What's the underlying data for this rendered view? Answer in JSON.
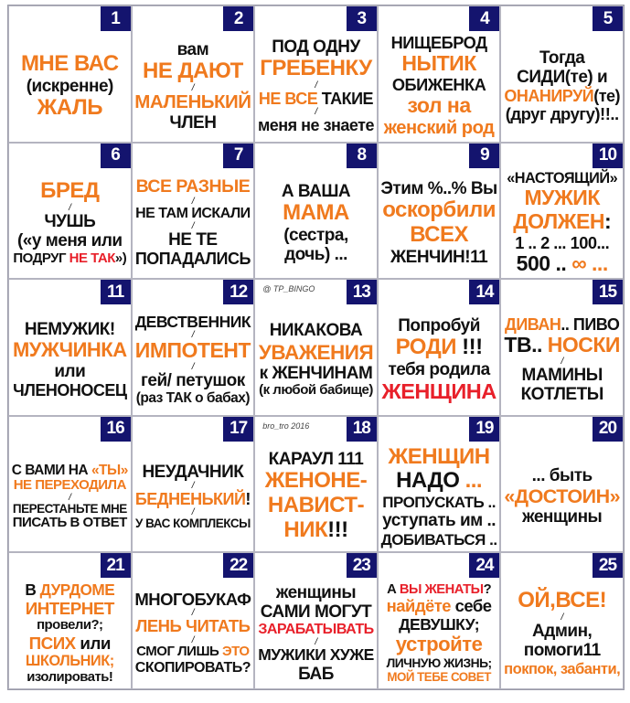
{
  "colors": {
    "orange": "#f07a1e",
    "red": "#e8202a",
    "number_bg": "#14146e",
    "text": "#111111"
  },
  "cells": [
    {
      "num": "1",
      "lines": [
        [
          [
            "o",
            "МНЕ ВАС"
          ]
        ],
        [
          [
            "b",
            "(искренне)"
          ]
        ],
        [
          [
            "o",
            "ЖАЛЬ"
          ]
        ]
      ]
    },
    {
      "num": "2",
      "lines": [
        [
          [
            "b",
            "вам"
          ]
        ],
        [
          [
            "o",
            "НЕ ДАЮТ"
          ]
        ],
        [
          [
            "b",
            "/"
          ]
        ],
        [
          [
            "o",
            "МАЛЕНЬКИЙ"
          ]
        ],
        [
          [
            "b",
            "ЧЛЕН"
          ]
        ]
      ]
    },
    {
      "num": "3",
      "lines": [
        [
          [
            "b",
            "ПОД ОДНУ"
          ]
        ],
        [
          [
            "o",
            "ГРЕБЕНКУ"
          ]
        ],
        [
          [
            "b",
            "/"
          ]
        ],
        [
          [
            "o",
            "НЕ ВСЕ "
          ],
          [
            "b",
            "ТАКИЕ"
          ]
        ],
        [
          [
            "b",
            "/"
          ]
        ],
        [
          [
            "b",
            "меня не знаете"
          ]
        ]
      ]
    },
    {
      "num": "4",
      "lines": [
        [
          [
            "b",
            "НИЩЕБРОД"
          ]
        ],
        [
          [
            "o",
            "НЫТИК"
          ]
        ],
        [
          [
            "b",
            "ОБИЖЕНКА"
          ]
        ],
        [
          [
            "o",
            "зол на"
          ]
        ],
        [
          [
            "o",
            "женский род"
          ]
        ]
      ]
    },
    {
      "num": "5",
      "lines": [
        [
          [
            "b",
            "Тогда"
          ]
        ],
        [
          [
            "b",
            "СИДИ(те) и"
          ]
        ],
        [
          [
            "o",
            "ОНАНИРУЙ"
          ],
          [
            "b",
            "(те)"
          ]
        ],
        [
          [
            "b",
            "(друг другу)!!.."
          ]
        ]
      ]
    },
    {
      "num": "6",
      "lines": [
        [
          [
            "o",
            "БРЕД"
          ]
        ],
        [
          [
            "b",
            "/"
          ]
        ],
        [
          [
            "b",
            "ЧУШЬ"
          ]
        ],
        [
          [
            "b",
            "(«у меня или"
          ]
        ],
        [
          [
            "b",
            "ПОДРУГ "
          ],
          [
            "r",
            "НЕ ТАК"
          ],
          [
            "b",
            "»)"
          ]
        ]
      ]
    },
    {
      "num": "7",
      "lines": [
        [
          [
            "o",
            "ВСЕ РАЗНЫЕ"
          ]
        ],
        [
          [
            "b",
            "/"
          ]
        ],
        [
          [
            "b",
            "НЕ ТАМ ИСКАЛИ"
          ]
        ],
        [
          [
            "b",
            "/"
          ]
        ],
        [
          [
            "b",
            "НЕ ТЕ"
          ]
        ],
        [
          [
            "b",
            "ПОПАДАЛИСЬ"
          ]
        ]
      ]
    },
    {
      "num": "8",
      "lines": [
        [
          [
            "b",
            "А ВАША"
          ]
        ],
        [
          [
            "o",
            "МАМА"
          ]
        ],
        [
          [
            "b",
            "(сестра,"
          ]
        ],
        [
          [
            "b",
            "дочь) ..."
          ]
        ]
      ]
    },
    {
      "num": "9",
      "lines": [
        [
          [
            "b",
            "Этим %..% Вы"
          ]
        ],
        [
          [
            "o",
            "оскорбили"
          ]
        ],
        [
          [
            "o",
            "ВСЕХ"
          ]
        ],
        [
          [
            "b",
            "ЖЕНЧИН!11"
          ]
        ]
      ]
    },
    {
      "num": "10",
      "lines": [
        [
          [
            "b",
            "«НАСТОЯЩИЙ»"
          ]
        ],
        [
          [
            "o",
            "МУЖИК"
          ]
        ],
        [
          [
            "o",
            "ДОЛЖЕН"
          ],
          [
            "b",
            ":"
          ]
        ],
        [
          [
            "b",
            "1 .. 2 ... 100..."
          ]
        ],
        [
          [
            "b",
            "500 .. "
          ],
          [
            "o",
            "∞ ..."
          ]
        ]
      ]
    },
    {
      "num": "11",
      "lines": [
        [
          [
            "b",
            "НЕМУЖИК!"
          ]
        ],
        [
          [
            "o",
            "МУЖЧИНКА"
          ]
        ],
        [
          [
            "b",
            "или"
          ]
        ],
        [
          [
            "b",
            "ЧЛЕНОНОСЕЦ"
          ]
        ]
      ]
    },
    {
      "num": "12",
      "lines": [
        [
          [
            "b",
            "ДЕВСТВЕННИК"
          ]
        ],
        [
          [
            "b",
            "/"
          ]
        ],
        [
          [
            "o",
            "ИМПОТЕНТ"
          ]
        ],
        [
          [
            "b",
            "/"
          ]
        ],
        [
          [
            "b",
            "гей/ петушок"
          ]
        ],
        [
          [
            "b",
            "(раз ТАК о бабах)"
          ]
        ]
      ]
    },
    {
      "num": "13",
      "watermark": "@ TP_BINGO",
      "lines": [
        [
          [
            "b",
            "НИКАКОВА"
          ]
        ],
        [
          [
            "o",
            "УВАЖЕНИЯ"
          ]
        ],
        [
          [
            "b",
            "к ЖЕНЧИНАМ"
          ]
        ],
        [
          [
            "b",
            "(к любой бабище)"
          ]
        ]
      ]
    },
    {
      "num": "14",
      "lines": [
        [
          [
            "b",
            "Попробуй"
          ]
        ],
        [
          [
            "o",
            "РОДИ"
          ],
          [
            "b",
            " !!!"
          ]
        ],
        [
          [
            "b",
            "тебя родила"
          ]
        ],
        [
          [
            "r",
            "ЖЕНЩИНА"
          ]
        ]
      ]
    },
    {
      "num": "15",
      "lines": [
        [
          [
            "o",
            "ДИВАН"
          ],
          [
            "b",
            ".. ПИВО"
          ]
        ],
        [
          [
            "b",
            "ТВ.. "
          ],
          [
            "o",
            "НОСКИ"
          ]
        ],
        [
          [
            "b",
            "/"
          ]
        ],
        [
          [
            "b",
            "МАМИНЫ"
          ]
        ],
        [
          [
            "b",
            "КОТЛЕТЫ"
          ]
        ]
      ]
    },
    {
      "num": "16",
      "lines": [
        [
          [
            "b",
            "С ВАМИ НА "
          ],
          [
            "o",
            "«ТЫ»"
          ]
        ],
        [
          [
            "o",
            "НЕ ПЕРЕХОДИЛА"
          ]
        ],
        [
          [
            "b",
            "/"
          ]
        ],
        [
          [
            "b",
            "ПЕРЕСТАНЬТЕ МНЕ"
          ]
        ],
        [
          [
            "b",
            "ПИСАТЬ В ОТВЕТ"
          ]
        ]
      ]
    },
    {
      "num": "17",
      "lines": [
        [
          [
            "b",
            "НЕУДАЧНИК"
          ]
        ],
        [
          [
            "b",
            "/"
          ]
        ],
        [
          [
            "o",
            "БЕДНЕНЬКИЙ"
          ],
          [
            "b",
            "!"
          ]
        ],
        [
          [
            "b",
            "/"
          ]
        ],
        [
          [
            "b",
            "У ВАС КОМПЛЕКСЫ"
          ]
        ]
      ]
    },
    {
      "num": "18",
      "watermark": "bro_tro 2016",
      "lines": [
        [
          [
            "b",
            "КАРАУЛ 111"
          ]
        ],
        [
          [
            "o",
            "ЖЕНОНЕ-"
          ]
        ],
        [
          [
            "o",
            "НАВИСТ-"
          ]
        ],
        [
          [
            "o",
            "НИК"
          ],
          [
            "b",
            "!!!"
          ]
        ]
      ]
    },
    {
      "num": "19",
      "lines": [
        [
          [
            "o",
            "ЖЕНЩИН"
          ]
        ],
        [
          [
            "b",
            "НАДО"
          ],
          [
            "o",
            " ..."
          ]
        ],
        [
          [
            "b",
            "ПРОПУСКАТЬ .."
          ]
        ],
        [
          [
            "b",
            "уступать им .."
          ]
        ],
        [
          [
            "b",
            "ДОБИВАТЬСЯ .."
          ]
        ]
      ]
    },
    {
      "num": "20",
      "lines": [
        [
          [
            "b",
            "... быть"
          ]
        ],
        [
          [
            "o",
            "«ДОСТОИН»"
          ]
        ],
        [
          [
            "b",
            "женщины"
          ]
        ]
      ]
    },
    {
      "num": "21",
      "lines": [
        [
          [
            "b",
            "В "
          ],
          [
            "o",
            "ДУРДОМЕ"
          ]
        ],
        [
          [
            "o",
            "ИНТЕРНЕТ"
          ]
        ],
        [
          [
            "b",
            "провели?;"
          ]
        ],
        [
          [
            "o",
            "ПСИХ"
          ],
          [
            "b",
            " или"
          ]
        ],
        [
          [
            "o",
            "ШКОЛЬНИК;"
          ]
        ],
        [
          [
            "b",
            "изолировать!"
          ]
        ]
      ]
    },
    {
      "num": "22",
      "lines": [
        [
          [
            "b",
            "МНОГОБУКАФ"
          ]
        ],
        [
          [
            "b",
            "/"
          ]
        ],
        [
          [
            "o",
            "ЛЕНЬ ЧИТАТЬ"
          ]
        ],
        [
          [
            "b",
            "/"
          ]
        ],
        [
          [
            "b",
            "СМОГ ЛИШЬ "
          ],
          [
            "o",
            "ЭТО"
          ]
        ],
        [
          [
            "b",
            "СКОПИРОВАТЬ?"
          ]
        ]
      ]
    },
    {
      "num": "23",
      "lines": [
        [
          [
            "b",
            "женщины"
          ]
        ],
        [
          [
            "b",
            "САМИ МОГУТ"
          ]
        ],
        [
          [
            "r",
            "ЗАРАБАТЫВАТЬ"
          ]
        ],
        [
          [
            "b",
            "/"
          ]
        ],
        [
          [
            "b",
            "МУЖИКИ ХУЖЕ"
          ]
        ],
        [
          [
            "b",
            "БАБ"
          ]
        ]
      ]
    },
    {
      "num": "24",
      "lines": [
        [
          [
            "b",
            "А "
          ],
          [
            "r",
            "ВЫ ЖЕНАТЫ"
          ],
          [
            "b",
            "?"
          ]
        ],
        [
          [
            "o",
            "найдёте"
          ],
          [
            "b",
            " себе"
          ]
        ],
        [
          [
            "b",
            "ДЕВУШКУ;"
          ]
        ],
        [
          [
            "o",
            "устройте"
          ]
        ],
        [
          [
            "b",
            "ЛИЧНУЮ ЖИЗНЬ;"
          ]
        ],
        [
          [
            "o",
            "МОЙ ТЕБЕ СОВЕТ"
          ]
        ]
      ]
    },
    {
      "num": "25",
      "lines": [
        [
          [
            "o",
            "ОЙ,ВСЕ!"
          ]
        ],
        [
          [
            "b",
            "/"
          ]
        ],
        [
          [
            "b",
            "Админ,"
          ]
        ],
        [
          [
            "b",
            "помоги11"
          ]
        ],
        [
          [
            "o",
            "покпок, забанти,"
          ]
        ]
      ]
    }
  ]
}
